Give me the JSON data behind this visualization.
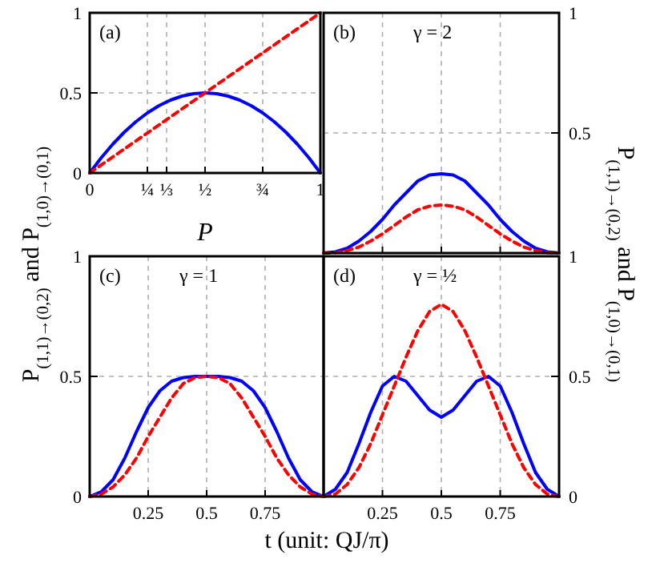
{
  "chart_data": [
    {
      "type": "line",
      "xlabel": "P",
      "annotations": [
        "(a)"
      ],
      "xlim": [
        0,
        1
      ],
      "ylim": [
        0,
        1
      ],
      "xticks": [
        0,
        {
          "value": 0.25,
          "label": "¼"
        },
        {
          "value": 0.3333,
          "label": "⅓"
        },
        {
          "value": 0.5,
          "label": "½"
        },
        {
          "value": 0.75,
          "label": "¾"
        },
        1
      ],
      "yticks": [
        0,
        0.5,
        1
      ],
      "grid": true,
      "series": [
        {
          "color": "#0000ff",
          "line_style": "solid",
          "x": [
            0,
            0.05,
            0.1,
            0.15,
            0.2,
            0.25,
            0.3,
            0.35,
            0.4,
            0.45,
            0.5,
            0.55,
            0.6,
            0.65,
            0.7,
            0.75,
            0.8,
            0.85,
            0.9,
            0.95,
            1
          ],
          "values": [
            0,
            0.095,
            0.18,
            0.255,
            0.32,
            0.375,
            0.42,
            0.455,
            0.48,
            0.495,
            0.5,
            0.495,
            0.48,
            0.455,
            0.42,
            0.375,
            0.32,
            0.255,
            0.18,
            0.095,
            0
          ]
        },
        {
          "color": "#ff0000",
          "line_style": "dashed",
          "x": [
            0,
            1
          ],
          "values": [
            0,
            1
          ]
        }
      ]
    },
    {
      "type": "line",
      "ylabel": "P$_{(1,1)→(0,2)}$ and P$_{(1,0)→(0,1)}$",
      "annotations": [
        "(b)",
        "γ = 2"
      ],
      "xlim": [
        0,
        1
      ],
      "ylim": [
        0,
        1
      ],
      "xticks": [
        {
          "value": 0.25,
          "label": null
        },
        {
          "value": 0.5,
          "label": null
        },
        {
          "value": 0.75,
          "label": null
        }
      ],
      "yticks": [
        {
          "value": 0,
          "label": null
        },
        0.5,
        1
      ],
      "grid": true,
      "tick_labels": "y",
      "series": [
        {
          "color": "#0000ff",
          "line_style": "solid",
          "x": [
            0,
            0.05,
            0.1,
            0.15,
            0.2,
            0.25,
            0.3,
            0.35,
            0.4,
            0.45,
            0.5,
            0.55,
            0.6,
            0.65,
            0.7,
            0.75,
            0.8,
            0.85,
            0.9,
            0.95,
            1
          ],
          "values": [
            0,
            0.005,
            0.02,
            0.05,
            0.09,
            0.14,
            0.2,
            0.25,
            0.3,
            0.325,
            0.33,
            0.325,
            0.3,
            0.25,
            0.2,
            0.14,
            0.09,
            0.05,
            0.02,
            0.005,
            0
          ]
        },
        {
          "color": "#ff0000",
          "line_style": "dashed",
          "x": [
            0,
            0.05,
            0.1,
            0.15,
            0.2,
            0.25,
            0.3,
            0.35,
            0.4,
            0.45,
            0.5,
            0.55,
            0.6,
            0.65,
            0.7,
            0.75,
            0.8,
            0.85,
            0.9,
            0.95,
            1
          ],
          "values": [
            0,
            0.002,
            0.01,
            0.025,
            0.05,
            0.08,
            0.115,
            0.15,
            0.18,
            0.195,
            0.2,
            0.195,
            0.18,
            0.15,
            0.115,
            0.08,
            0.05,
            0.025,
            0.01,
            0.002,
            0
          ]
        }
      ]
    },
    {
      "type": "line",
      "ylabel": "P$_{(1,1)→(0,2)}$ and P$_{(1,0)→(0,1)}$",
      "xlabel": "t (unit: QJ/π)",
      "annotations": [
        "(c)",
        "γ = 1"
      ],
      "xlim": [
        0,
        1
      ],
      "ylim": [
        0,
        1
      ],
      "xticks": [
        0.25,
        0.5,
        0.75
      ],
      "yticks": [
        0,
        0.5,
        1
      ],
      "grid": true,
      "series": [
        {
          "color": "#0000ff",
          "line_style": "solid",
          "x": [
            0,
            0.05,
            0.1,
            0.15,
            0.2,
            0.25,
            0.3,
            0.35,
            0.4,
            0.45,
            0.5,
            0.55,
            0.6,
            0.65,
            0.7,
            0.75,
            0.8,
            0.85,
            0.9,
            0.95,
            1
          ],
          "values": [
            0,
            0.02,
            0.07,
            0.16,
            0.27,
            0.37,
            0.44,
            0.48,
            0.495,
            0.5,
            0.5,
            0.5,
            0.495,
            0.48,
            0.44,
            0.37,
            0.27,
            0.16,
            0.07,
            0.02,
            0
          ]
        },
        {
          "color": "#ff0000",
          "line_style": "dashed",
          "x": [
            0,
            0.05,
            0.1,
            0.15,
            0.2,
            0.25,
            0.3,
            0.35,
            0.4,
            0.45,
            0.5,
            0.55,
            0.6,
            0.65,
            0.7,
            0.75,
            0.8,
            0.85,
            0.9,
            0.95,
            1
          ],
          "values": [
            0,
            0.01,
            0.04,
            0.09,
            0.16,
            0.25,
            0.33,
            0.41,
            0.47,
            0.495,
            0.5,
            0.495,
            0.47,
            0.41,
            0.33,
            0.25,
            0.16,
            0.09,
            0.04,
            0.01,
            0
          ]
        }
      ]
    },
    {
      "type": "line",
      "annotations": [
        "(d)",
        "γ = ½"
      ],
      "xlim": [
        0,
        1
      ],
      "ylim": [
        0,
        1
      ],
      "xticks": [
        0.25,
        0.5,
        0.75
      ],
      "yticks": [
        0,
        0.5,
        1
      ],
      "grid": true,
      "series": [
        {
          "color": "#0000ff",
          "line_style": "solid",
          "x": [
            0,
            0.05,
            0.1,
            0.15,
            0.2,
            0.25,
            0.3,
            0.35,
            0.4,
            0.45,
            0.5,
            0.55,
            0.6,
            0.65,
            0.7,
            0.75,
            0.8,
            0.85,
            0.9,
            0.95,
            1
          ],
          "values": [
            0,
            0.03,
            0.1,
            0.22,
            0.35,
            0.46,
            0.5,
            0.48,
            0.42,
            0.36,
            0.33,
            0.36,
            0.42,
            0.48,
            0.5,
            0.46,
            0.35,
            0.22,
            0.1,
            0.03,
            0
          ]
        },
        {
          "color": "#ff0000",
          "line_style": "dashed",
          "x": [
            0,
            0.05,
            0.1,
            0.15,
            0.2,
            0.25,
            0.3,
            0.35,
            0.4,
            0.45,
            0.5,
            0.55,
            0.6,
            0.65,
            0.7,
            0.75,
            0.8,
            0.85,
            0.9,
            0.95,
            1
          ],
          "values": [
            0,
            0.01,
            0.05,
            0.12,
            0.22,
            0.34,
            0.46,
            0.58,
            0.69,
            0.77,
            0.8,
            0.77,
            0.69,
            0.58,
            0.46,
            0.34,
            0.22,
            0.12,
            0.05,
            0.01,
            0
          ]
        }
      ]
    }
  ]
}
